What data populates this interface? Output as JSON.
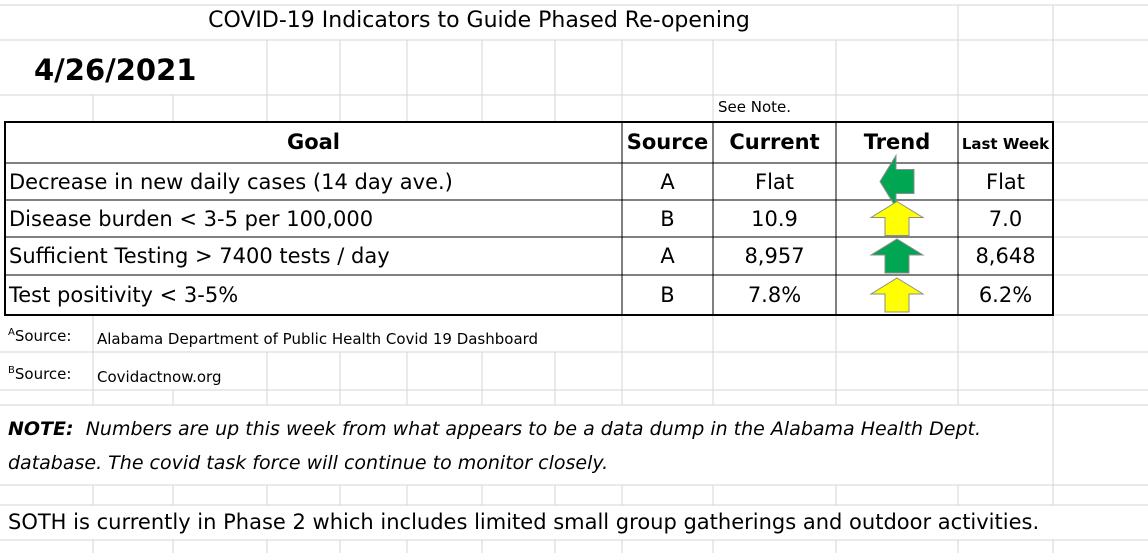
{
  "title": "COVID-19 Indicators to Guide Phased Re-opening",
  "date": "4/26/2021",
  "see_note": "See Note.",
  "table": {
    "headers": [
      "Goal",
      "Source",
      "Current",
      "Trend",
      "Last Week"
    ],
    "rows": [
      {
        "goal": "Decrease in new daily cases (14 day ave.)",
        "source": "A",
        "current": "Flat",
        "trend": {
          "direction": "left",
          "color": "#00a651"
        },
        "last_week": "Flat"
      },
      {
        "goal": "Disease burden < 3-5 per 100,000",
        "source": "B",
        "current": "10.9",
        "trend": {
          "direction": "up",
          "color": "#ffff00"
        },
        "last_week": "7.0"
      },
      {
        "goal": "Sufficient Testing > 7400 tests / day",
        "source": "A",
        "current": "8,957",
        "trend": {
          "direction": "up",
          "color": "#00a651"
        },
        "last_week": "8,648"
      },
      {
        "goal": "Test positivity < 3-5%",
        "source": "B",
        "current": "7.8%",
        "trend": {
          "direction": "up",
          "color": "#ffff00"
        },
        "last_week": "6.2%"
      }
    ]
  },
  "sources": [
    {
      "marker": "A",
      "label": "Source:",
      "text": "Alabama Department of Public Health Covid 19 Dashboard"
    },
    {
      "marker": "B",
      "label": "Source:",
      "text": "Covidactnow.org"
    }
  ],
  "note": {
    "label": "NOTE:",
    "text": "Numbers are up this week from what appears to be a data dump in the Alabama Health Dept. database.  The covid task force will continue to monitor closely."
  },
  "footer": "SOTH is currently in Phase 2 which includes limited small group gatherings and outdoor activities."
}
